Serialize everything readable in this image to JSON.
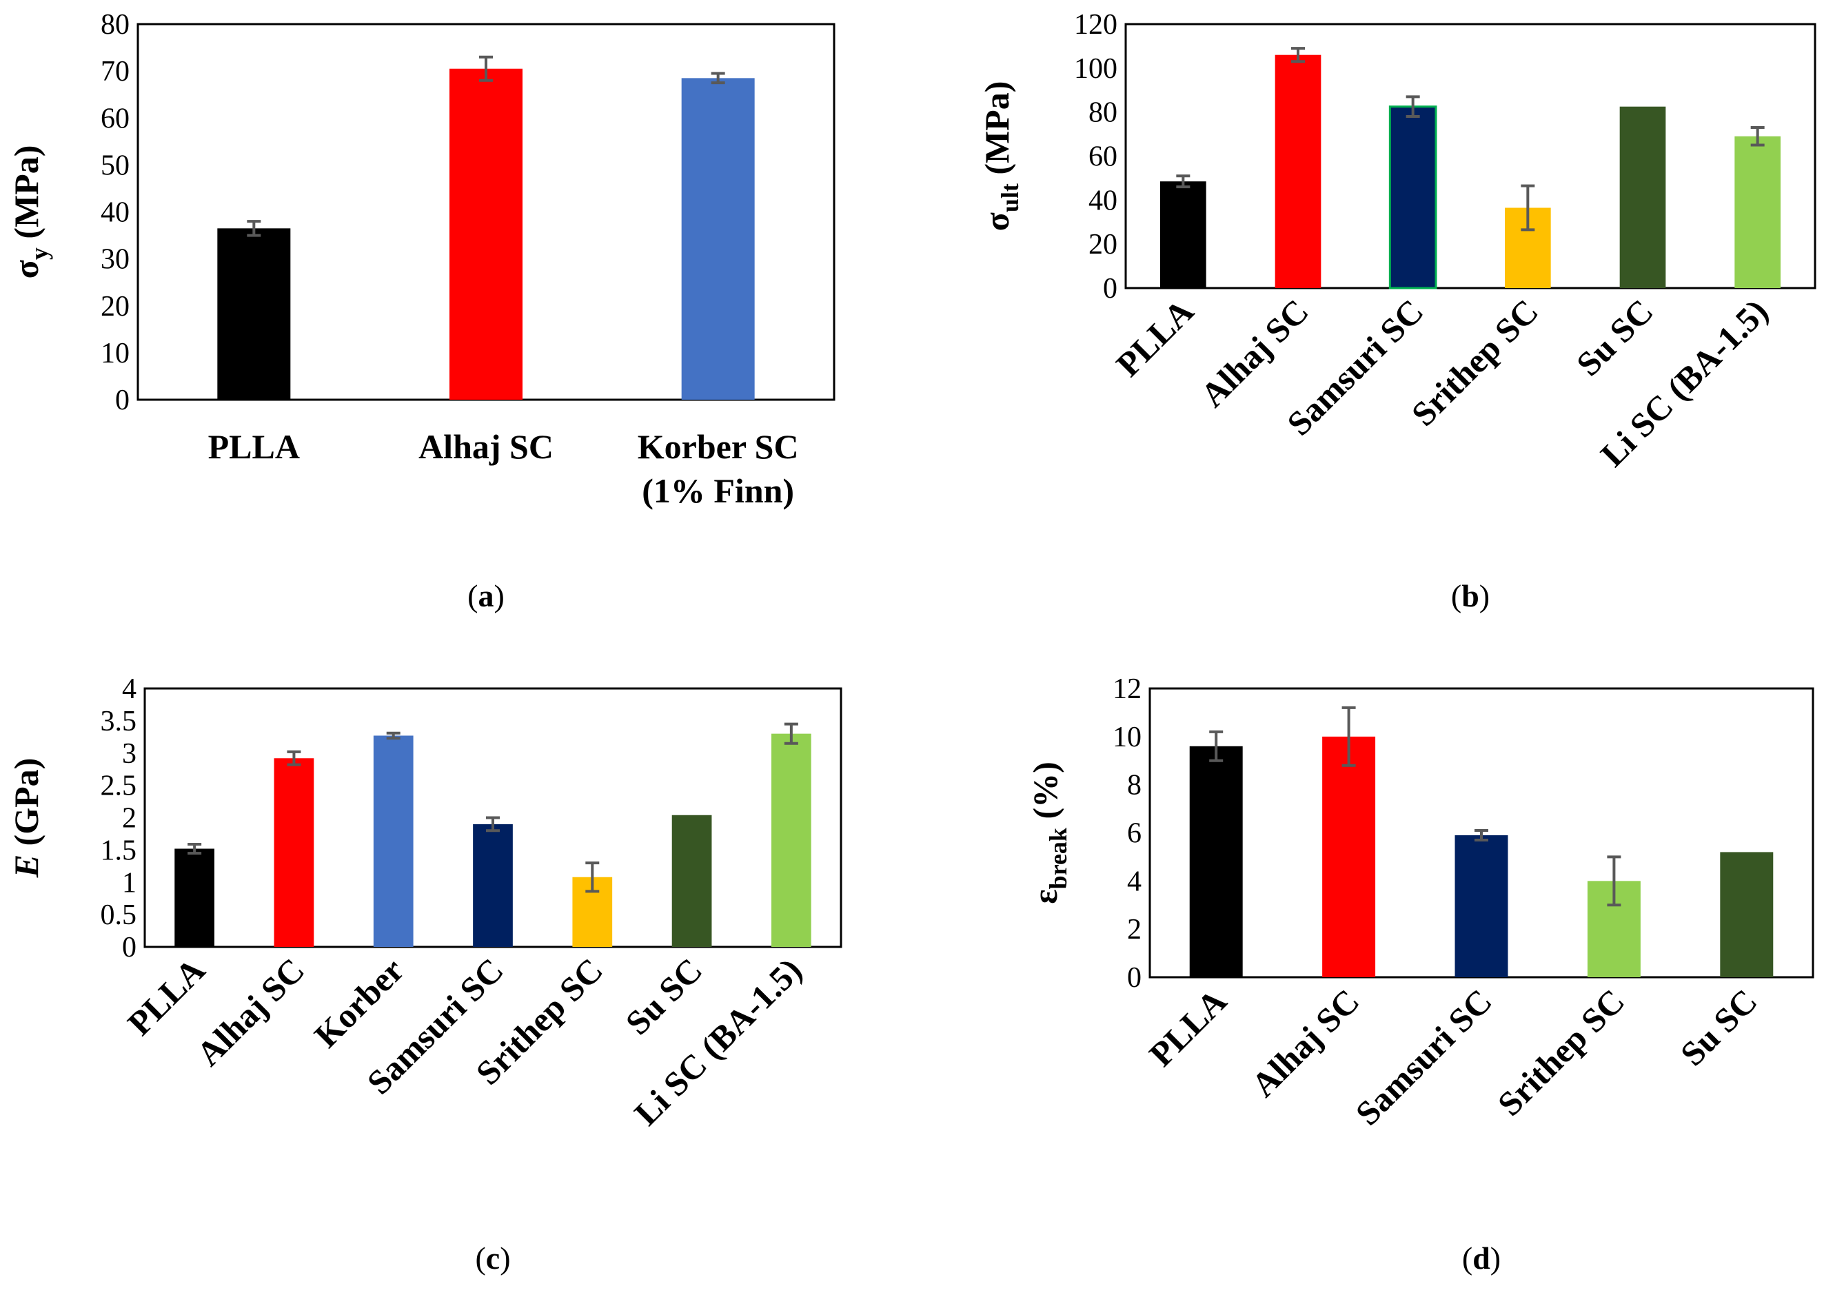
{
  "colors": {
    "black": "#000000",
    "red": "#FF0000",
    "blue": "#4472C4",
    "navy": "#002060",
    "gold": "#FFC000",
    "darkgreen": "#375623",
    "lightgreen": "#92D050",
    "errorbar": "#595959",
    "outline_green": "#00B050"
  },
  "chart_data": [
    {
      "id": "a",
      "type": "bar",
      "panel_label": "(a)",
      "panel_letter": "a",
      "ylabel_symbol": "σ",
      "ylabel_sub": "y",
      "ylabel_unit": " (MPa)",
      "ylim": [
        0,
        80
      ],
      "yticks": [
        "0",
        "10",
        "20",
        "30",
        "40",
        "50",
        "60",
        "70",
        "80"
      ],
      "categories": [
        "PLLA",
        "Alhaj SC",
        "Korber SC\n(1% Finn)"
      ],
      "values": [
        36.5,
        70.5,
        68.5
      ],
      "errors": [
        1.5,
        2.5,
        1.0
      ],
      "colors": [
        "black",
        "red",
        "blue"
      ],
      "rotated_labels": false
    },
    {
      "id": "b",
      "type": "bar",
      "panel_label": "(b)",
      "panel_letter": "b",
      "ylabel_symbol": "σ",
      "ylabel_sub": "ult",
      "ylabel_unit": " (MPa)",
      "ylim": [
        0,
        120
      ],
      "yticks": [
        "0",
        "20",
        "40",
        "60",
        "80",
        "100",
        "120"
      ],
      "categories": [
        "PLLA",
        "Alhaj SC",
        "Samsuri SC",
        "Srithep SC",
        "Su SC",
        "Li SC (BA-1.5)"
      ],
      "values": [
        48.5,
        106,
        82.5,
        36.5,
        82.5,
        69
      ],
      "errors": [
        2.5,
        3.0,
        4.5,
        10.0,
        null,
        4.0
      ],
      "colors": [
        "black",
        "red",
        "navy",
        "gold",
        "darkgreen",
        "lightgreen"
      ],
      "rotated_labels": true
    },
    {
      "id": "c",
      "type": "bar",
      "panel_label": "(c)",
      "panel_letter": "c",
      "ylabel_symbol": "E",
      "ylabel_sub": "",
      "ylabel_unit": " (GPa)",
      "ylim": [
        0,
        4
      ],
      "yticks": [
        "0",
        "0.5",
        "1",
        "1.5",
        "2",
        "2.5",
        "3",
        "3.5",
        "4"
      ],
      "categories": [
        "PLLA",
        "Alhaj SC",
        "Korber",
        "Samsuri SC",
        "Srithep SC",
        "Su SC",
        "Li SC (BA-1.5)"
      ],
      "values": [
        1.52,
        2.92,
        3.27,
        1.9,
        1.08,
        2.04,
        3.3
      ],
      "errors": [
        0.07,
        0.1,
        0.04,
        0.1,
        0.22,
        null,
        0.15
      ],
      "colors": [
        "black",
        "red",
        "blue",
        "navy",
        "gold",
        "darkgreen",
        "lightgreen"
      ],
      "rotated_labels": true
    },
    {
      "id": "d",
      "type": "bar",
      "panel_label": "(d)",
      "panel_letter": "d",
      "ylabel_symbol": "ε",
      "ylabel_sub": "break",
      "ylabel_unit": " (%)",
      "ylim": [
        0,
        12
      ],
      "yticks": [
        "0",
        "2",
        "4",
        "6",
        "8",
        "10",
        "12"
      ],
      "categories": [
        "PLLA",
        "Alhaj SC",
        "Samsuri SC",
        "Srithep SC",
        "Su SC"
      ],
      "values": [
        9.6,
        10.0,
        5.9,
        4.0,
        5.2
      ],
      "errors": [
        0.6,
        1.2,
        0.2,
        1.0,
        null
      ],
      "colors": [
        "black",
        "red",
        "navy",
        "lightgreen",
        "darkgreen"
      ],
      "rotated_labels": true
    }
  ]
}
